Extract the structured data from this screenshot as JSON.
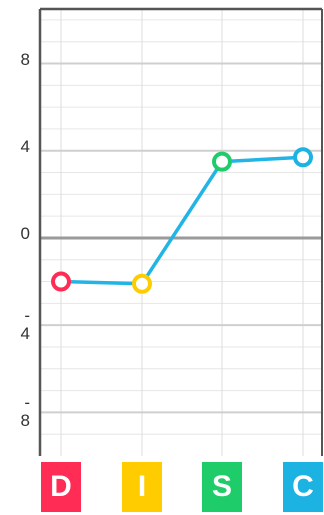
{
  "chart_data": {
    "type": "line",
    "categories": [
      "D",
      "I",
      "S",
      "C"
    ],
    "series": [
      {
        "values": [
          -2.0,
          -2.1,
          3.5,
          3.7
        ]
      }
    ],
    "ylim": [
      -10,
      10.5
    ],
    "y_tick_labels": [
      {
        "value": 8,
        "lines": [
          "8"
        ]
      },
      {
        "value": 4,
        "lines": [
          "4"
        ]
      },
      {
        "value": 0,
        "lines": [
          "0"
        ]
      },
      {
        "value": -4,
        "lines": [
          "-",
          "4"
        ]
      },
      {
        "value": -8,
        "lines": [
          "-",
          "8"
        ]
      }
    ],
    "category_colors": [
      "#ff2d55",
      "#ffcc00",
      "#1fcc6a",
      "#1cb3e3"
    ],
    "line_color": "#23b4e6",
    "grid": true
  }
}
